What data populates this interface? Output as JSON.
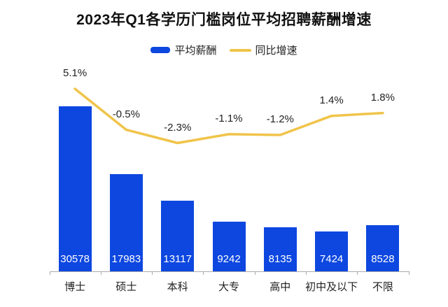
{
  "title": "2023年Q1各学历门槛岗位平均招聘薪酬增速",
  "legend": {
    "items": [
      {
        "label": "平均薪酬",
        "type": "bar",
        "color": "#0d47e0"
      },
      {
        "label": "同比增速",
        "type": "line",
        "color": "#f0c44a"
      }
    ]
  },
  "colors": {
    "bar": "#0d47e0",
    "line": "#f0c44a",
    "bar_value_text": "#ffffff",
    "label_text": "#222222",
    "axis": "#ababab"
  },
  "chart_data": {
    "type": "bar+line combo",
    "title": "2023年Q1各学历门槛岗位平均招聘薪酬增速",
    "categories": [
      "博士",
      "硕士",
      "本科",
      "大专",
      "高中",
      "初中及以下",
      "不限"
    ],
    "series": [
      {
        "name": "平均薪酬",
        "type": "bar",
        "values": [
          30578,
          17983,
          13117,
          9242,
          8135,
          7424,
          8528
        ],
        "value_labels": [
          "30578",
          "17983",
          "13117",
          "9242",
          "8135",
          "7424",
          "8528"
        ],
        "color": "#0d47e0"
      },
      {
        "name": "同比增速",
        "type": "line",
        "values": [
          5.1,
          -0.5,
          -2.3,
          -1.1,
          -1.2,
          1.4,
          1.8
        ],
        "value_labels": [
          "5.1%",
          "-0.5%",
          "-2.3%",
          "-1.1%",
          "-1.2%",
          "1.4%",
          "1.8%"
        ],
        "unit": "%",
        "color": "#f0c44a"
      }
    ],
    "xlabel": "",
    "ylabel": "",
    "y_axes_hidden": true,
    "bar_axis_min": 0,
    "legend_position": "top-center",
    "grid": false
  }
}
